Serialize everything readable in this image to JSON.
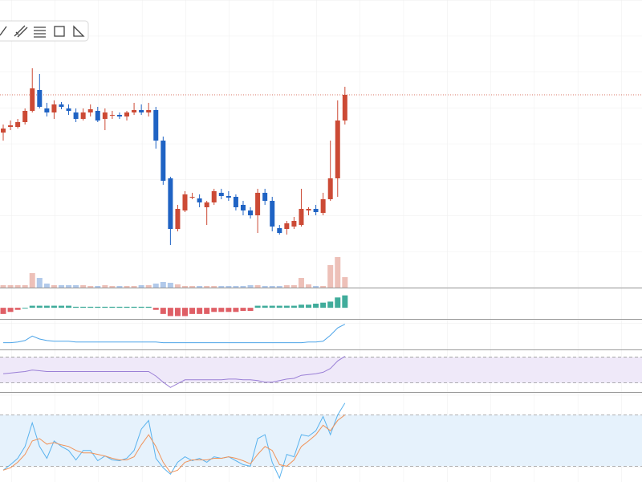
{
  "chart_data": {
    "type": "candlestick",
    "up_color": "#cc4a35",
    "down_color": "#1f63c4",
    "ylim": [
      0,
      358
    ],
    "open": [
      193,
      200,
      200,
      206,
      220,
      246,
      223,
      218,
      228,
      223,
      218,
      210,
      218,
      220,
      210,
      215,
      215,
      213,
      218,
      221,
      218,
      221,
      183,
      136,
      73,
      96,
      113,
      111,
      100,
      106,
      118,
      114,
      113,
      103,
      96,
      90,
      118,
      108,
      74,
      73,
      76,
      78,
      96,
      98,
      93,
      110,
      136,
      208
    ],
    "high": [
      203,
      208,
      210,
      223,
      273,
      266,
      230,
      233,
      231,
      228,
      223,
      223,
      228,
      225,
      223,
      220,
      218,
      220,
      230,
      228,
      230,
      225,
      188,
      138,
      103,
      120,
      118,
      116,
      108,
      123,
      123,
      120,
      116,
      108,
      100,
      123,
      123,
      113,
      78,
      83,
      88,
      123,
      100,
      103,
      118,
      183,
      233,
      250
    ],
    "low": [
      183,
      196,
      198,
      203,
      218,
      223,
      213,
      210,
      222,
      215,
      206,
      208,
      213,
      206,
      196,
      210,
      210,
      208,
      215,
      215,
      213,
      173,
      128,
      53,
      70,
      94,
      110,
      100,
      78,
      103,
      110,
      108,
      96,
      90,
      86,
      68,
      103,
      70,
      66,
      66,
      73,
      76,
      90,
      90,
      90,
      108,
      113,
      203
    ],
    "close": [
      198,
      202,
      206,
      220,
      248,
      225,
      218,
      228,
      225,
      220,
      210,
      218,
      222,
      208,
      218,
      215,
      213,
      218,
      221,
      218,
      221,
      183,
      133,
      73,
      98,
      116,
      113,
      106,
      106,
      120,
      114,
      112,
      100,
      96,
      90,
      118,
      108,
      76,
      68,
      80,
      83,
      98,
      98,
      94,
      110,
      136,
      208,
      240
    ],
    "volume": {
      "ylim": [
        0,
        60
      ],
      "values": [
        3,
        3,
        3,
        3,
        18,
        12,
        5,
        3,
        3,
        3,
        3,
        3,
        2,
        2,
        3,
        2,
        2,
        2,
        2,
        3,
        3,
        5,
        7,
        6,
        4,
        2,
        2,
        2,
        2,
        2,
        2,
        2,
        2,
        2,
        3,
        3,
        2,
        2,
        2,
        3,
        3,
        12,
        4,
        2,
        2,
        28,
        38,
        13
      ]
    },
    "indicators": [
      {
        "type": "bar",
        "ylim": [
          -5,
          9
        ],
        "up_color": "#1f9e89",
        "down_color": "#d9434b",
        "values": [
          -3,
          -2,
          -1,
          0,
          1,
          1,
          1,
          1,
          1,
          1,
          0.5,
          0.5,
          0.5,
          0.5,
          0.5,
          0.5,
          0.5,
          0.5,
          0.5,
          0.5,
          0.5,
          -1,
          -3,
          -4,
          -4,
          -4,
          -3,
          -3,
          -3,
          -2,
          -2,
          -2,
          -2,
          -1.5,
          -1.5,
          1,
          1,
          1,
          1,
          1,
          1,
          1.5,
          1.5,
          2,
          2.5,
          3,
          5,
          6
        ]
      },
      {
        "type": "line",
        "ylim": [
          0,
          38
        ],
        "series": [
          {
            "color": "#4aa3e8",
            "values": [
              8,
              8,
              9,
              11,
              17,
              13,
              11,
              10,
              10,
              10,
              9,
              9,
              9,
              9,
              9,
              9,
              9,
              9,
              9,
              9,
              9,
              9,
              8,
              8,
              8,
              8,
              8,
              8,
              8,
              8,
              8,
              8,
              8,
              8,
              8,
              8,
              8,
              8,
              8,
              8,
              8,
              8,
              9,
              9,
              10,
              18,
              28,
              33
            ]
          }
        ]
      },
      {
        "type": "line",
        "ylim": [
          0,
          53
        ],
        "band": [
          11,
          45
        ],
        "band_color": "#efe9f9",
        "series": [
          {
            "color": "#9a7fd6",
            "values": [
              23,
              24,
              25,
              26,
              28,
              27,
              26,
              26,
              26,
              26,
              26,
              26,
              26,
              26,
              26,
              26,
              26,
              26,
              26,
              26,
              26,
              20,
              12,
              5,
              10,
              15,
              15,
              15,
              15,
              15,
              15,
              16,
              16,
              15,
              15,
              14,
              12,
              12,
              14,
              16,
              17,
              21,
              22,
              23,
              25,
              30,
              40,
              46
            ]
          }
        ]
      },
      {
        "type": "line",
        "ylim": [
          0,
          112
        ],
        "band": [
          20,
          85
        ],
        "band_color": "#e6f2fc",
        "series": [
          {
            "color": "#5ab3ee",
            "values": [
              15,
              22,
              30,
              45,
              75,
              45,
              30,
              52,
              45,
              40,
              28,
              40,
              40,
              27,
              33,
              28,
              27,
              30,
              40,
              67,
              78,
              30,
              18,
              10,
              25,
              32,
              27,
              30,
              25,
              32,
              30,
              32,
              27,
              22,
              20,
              55,
              60,
              25,
              5,
              35,
              32,
              60,
              58,
              65,
              83,
              60,
              85,
              100
            ]
          },
          {
            "color": "#f0935a",
            "values": [
              15,
              18,
              25,
              35,
              52,
              55,
              48,
              50,
              47,
              45,
              40,
              37,
              37,
              35,
              33,
              30,
              28,
              28,
              32,
              47,
              60,
              45,
              25,
              12,
              15,
              25,
              28,
              28,
              28,
              30,
              30,
              32,
              30,
              27,
              23,
              35,
              45,
              40,
              22,
              20,
              28,
              45,
              52,
              60,
              72,
              65,
              78,
              85
            ]
          }
        ]
      }
    ]
  }
}
